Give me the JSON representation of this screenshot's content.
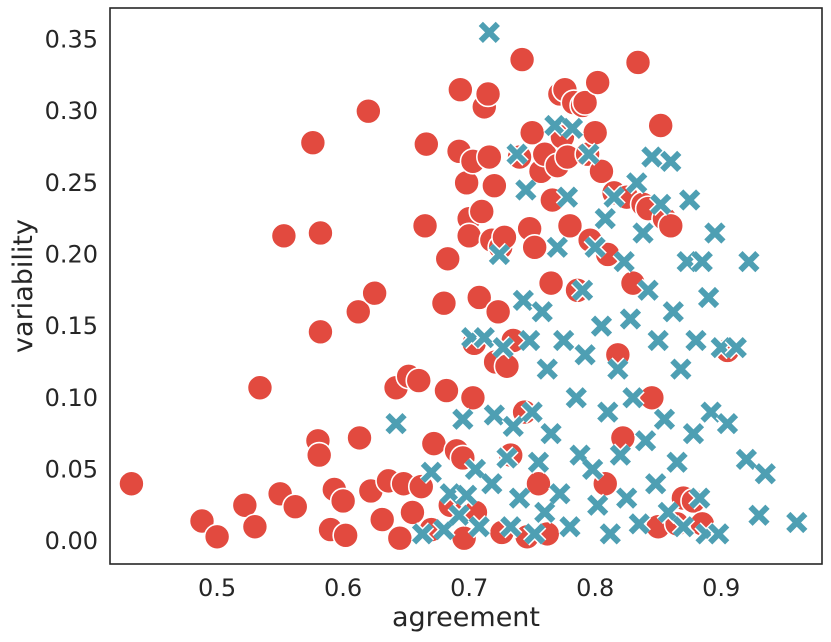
{
  "chart_data": {
    "type": "scatter",
    "xlabel": "agreement",
    "ylabel": "variability",
    "xlim": [
      0.415,
      0.98
    ],
    "ylim": [
      -0.016,
      0.372
    ],
    "xticks": [
      "0.5",
      "0.6",
      "0.7",
      "0.8",
      "0.9"
    ],
    "xtick_values": [
      0.5,
      0.6,
      0.7,
      0.8,
      0.9
    ],
    "yticks": [
      "0.00",
      "0.05",
      "0.10",
      "0.15",
      "0.20",
      "0.25",
      "0.30",
      "0.35"
    ],
    "ytick_values": [
      0.0,
      0.05,
      0.1,
      0.15,
      0.2,
      0.25,
      0.3,
      0.35
    ],
    "grid": false,
    "colors": {
      "circle": "#e24a3f",
      "cross": "#4e9fb3",
      "frame": "#262626"
    },
    "series": [
      {
        "marker": "circle",
        "points": [
          [
            0.432,
            0.04
          ],
          [
            0.488,
            0.014
          ],
          [
            0.5,
            0.003
          ],
          [
            0.522,
            0.025
          ],
          [
            0.53,
            0.01
          ],
          [
            0.534,
            0.107
          ],
          [
            0.55,
            0.033
          ],
          [
            0.553,
            0.213
          ],
          [
            0.562,
            0.024
          ],
          [
            0.576,
            0.278
          ],
          [
            0.58,
            0.07
          ],
          [
            0.581,
            0.06
          ],
          [
            0.582,
            0.215
          ],
          [
            0.582,
            0.146
          ],
          [
            0.59,
            0.008
          ],
          [
            0.593,
            0.036
          ],
          [
            0.6,
            0.028
          ],
          [
            0.602,
            0.004
          ],
          [
            0.612,
            0.16
          ],
          [
            0.613,
            0.072
          ],
          [
            0.62,
            0.3
          ],
          [
            0.622,
            0.035
          ],
          [
            0.625,
            0.173
          ],
          [
            0.631,
            0.015
          ],
          [
            0.636,
            0.042
          ],
          [
            0.642,
            0.107
          ],
          [
            0.645,
            0.002
          ],
          [
            0.648,
            0.04
          ],
          [
            0.652,
            0.115
          ],
          [
            0.655,
            0.02
          ],
          [
            0.66,
            0.112
          ],
          [
            0.662,
            0.038
          ],
          [
            0.665,
            0.22
          ],
          [
            0.666,
            0.277
          ],
          [
            0.67,
            0.008
          ],
          [
            0.672,
            0.068
          ],
          [
            0.68,
            0.166
          ],
          [
            0.682,
            0.105
          ],
          [
            0.683,
            0.197
          ],
          [
            0.685,
            0.025
          ],
          [
            0.69,
            0.063
          ],
          [
            0.692,
            0.272
          ],
          [
            0.693,
            0.315
          ],
          [
            0.695,
            0.058
          ],
          [
            0.696,
            0.002
          ],
          [
            0.698,
            0.25
          ],
          [
            0.7,
            0.225
          ],
          [
            0.7,
            0.213
          ],
          [
            0.703,
            0.265
          ],
          [
            0.703,
            0.1
          ],
          [
            0.704,
            0.138
          ],
          [
            0.705,
            0.02
          ],
          [
            0.708,
            0.17
          ],
          [
            0.71,
            0.23
          ],
          [
            0.712,
            0.303
          ],
          [
            0.715,
            0.312
          ],
          [
            0.716,
            0.268
          ],
          [
            0.718,
            0.21
          ],
          [
            0.72,
            0.248
          ],
          [
            0.721,
            0.125
          ],
          [
            0.723,
            0.16
          ],
          [
            0.725,
            0.205
          ],
          [
            0.726,
            0.006
          ],
          [
            0.728,
            0.212
          ],
          [
            0.73,
            0.122
          ],
          [
            0.733,
            0.06
          ],
          [
            0.735,
            0.14
          ],
          [
            0.74,
            0.268
          ],
          [
            0.742,
            0.336
          ],
          [
            0.744,
            0.09
          ],
          [
            0.746,
            0.003
          ],
          [
            0.748,
            0.218
          ],
          [
            0.75,
            0.285
          ],
          [
            0.752,
            0.205
          ],
          [
            0.755,
            0.04
          ],
          [
            0.757,
            0.258
          ],
          [
            0.76,
            0.27
          ],
          [
            0.762,
            0.005
          ],
          [
            0.765,
            0.18
          ],
          [
            0.766,
            0.238
          ],
          [
            0.77,
            0.262
          ],
          [
            0.772,
            0.312
          ],
          [
            0.774,
            0.282
          ],
          [
            0.776,
            0.315
          ],
          [
            0.778,
            0.268
          ],
          [
            0.78,
            0.22
          ],
          [
            0.783,
            0.306
          ],
          [
            0.786,
            0.175
          ],
          [
            0.79,
            0.304
          ],
          [
            0.792,
            0.306
          ],
          [
            0.794,
            0.27
          ],
          [
            0.796,
            0.21
          ],
          [
            0.8,
            0.285
          ],
          [
            0.802,
            0.32
          ],
          [
            0.805,
            0.258
          ],
          [
            0.808,
            0.04
          ],
          [
            0.81,
            0.2
          ],
          [
            0.815,
            0.243
          ],
          [
            0.818,
            0.13
          ],
          [
            0.822,
            0.072
          ],
          [
            0.825,
            0.24
          ],
          [
            0.83,
            0.18
          ],
          [
            0.834,
            0.334
          ],
          [
            0.838,
            0.235
          ],
          [
            0.842,
            0.232
          ],
          [
            0.845,
            0.1
          ],
          [
            0.85,
            0.01
          ],
          [
            0.852,
            0.29
          ],
          [
            0.855,
            0.225
          ],
          [
            0.86,
            0.22
          ],
          [
            0.865,
            0.012
          ],
          [
            0.87,
            0.03
          ],
          [
            0.878,
            0.028
          ],
          [
            0.885,
            0.012
          ],
          [
            0.905,
            0.133
          ]
        ]
      },
      {
        "marker": "cross",
        "points": [
          [
            0.642,
            0.082
          ],
          [
            0.663,
            0.005
          ],
          [
            0.67,
            0.048
          ],
          [
            0.68,
            0.008
          ],
          [
            0.685,
            0.033
          ],
          [
            0.692,
            0.018
          ],
          [
            0.695,
            0.085
          ],
          [
            0.698,
            0.032
          ],
          [
            0.702,
            0.142
          ],
          [
            0.705,
            0.05
          ],
          [
            0.708,
            0.01
          ],
          [
            0.712,
            0.142
          ],
          [
            0.716,
            0.355
          ],
          [
            0.718,
            0.04
          ],
          [
            0.72,
            0.088
          ],
          [
            0.724,
            0.2
          ],
          [
            0.727,
            0.135
          ],
          [
            0.73,
            0.058
          ],
          [
            0.733,
            0.01
          ],
          [
            0.735,
            0.08
          ],
          [
            0.738,
            0.27
          ],
          [
            0.74,
            0.03
          ],
          [
            0.743,
            0.168
          ],
          [
            0.745,
            0.245
          ],
          [
            0.748,
            0.14
          ],
          [
            0.75,
            0.09
          ],
          [
            0.752,
            0.005
          ],
          [
            0.755,
            0.055
          ],
          [
            0.758,
            0.16
          ],
          [
            0.76,
            0.02
          ],
          [
            0.762,
            0.12
          ],
          [
            0.765,
            0.075
          ],
          [
            0.768,
            0.29
          ],
          [
            0.77,
            0.205
          ],
          [
            0.772,
            0.033
          ],
          [
            0.775,
            0.14
          ],
          [
            0.778,
            0.24
          ],
          [
            0.78,
            0.01
          ],
          [
            0.782,
            0.288
          ],
          [
            0.785,
            0.1
          ],
          [
            0.788,
            0.06
          ],
          [
            0.79,
            0.175
          ],
          [
            0.792,
            0.13
          ],
          [
            0.795,
            0.27
          ],
          [
            0.798,
            0.05
          ],
          [
            0.8,
            0.205
          ],
          [
            0.802,
            0.025
          ],
          [
            0.805,
            0.15
          ],
          [
            0.808,
            0.225
          ],
          [
            0.81,
            0.09
          ],
          [
            0.812,
            0.005
          ],
          [
            0.815,
            0.24
          ],
          [
            0.818,
            0.12
          ],
          [
            0.82,
            0.06
          ],
          [
            0.823,
            0.195
          ],
          [
            0.825,
            0.03
          ],
          [
            0.828,
            0.155
          ],
          [
            0.83,
            0.1
          ],
          [
            0.833,
            0.25
          ],
          [
            0.835,
            0.012
          ],
          [
            0.838,
            0.215
          ],
          [
            0.84,
            0.07
          ],
          [
            0.842,
            0.175
          ],
          [
            0.845,
            0.268
          ],
          [
            0.848,
            0.04
          ],
          [
            0.85,
            0.14
          ],
          [
            0.852,
            0.235
          ],
          [
            0.855,
            0.085
          ],
          [
            0.858,
            0.02
          ],
          [
            0.86,
            0.265
          ],
          [
            0.862,
            0.16
          ],
          [
            0.865,
            0.055
          ],
          [
            0.868,
            0.12
          ],
          [
            0.87,
            0.01
          ],
          [
            0.873,
            0.195
          ],
          [
            0.875,
            0.238
          ],
          [
            0.878,
            0.075
          ],
          [
            0.88,
            0.14
          ],
          [
            0.883,
            0.03
          ],
          [
            0.885,
            0.195
          ],
          [
            0.888,
            0.005
          ],
          [
            0.89,
            0.17
          ],
          [
            0.892,
            0.09
          ],
          [
            0.895,
            0.215
          ],
          [
            0.898,
            0.005
          ],
          [
            0.9,
            0.135
          ],
          [
            0.905,
            0.082
          ],
          [
            0.912,
            0.135
          ],
          [
            0.92,
            0.057
          ],
          [
            0.922,
            0.195
          ],
          [
            0.93,
            0.018
          ],
          [
            0.935,
            0.047
          ],
          [
            0.96,
            0.013
          ]
        ]
      }
    ]
  }
}
